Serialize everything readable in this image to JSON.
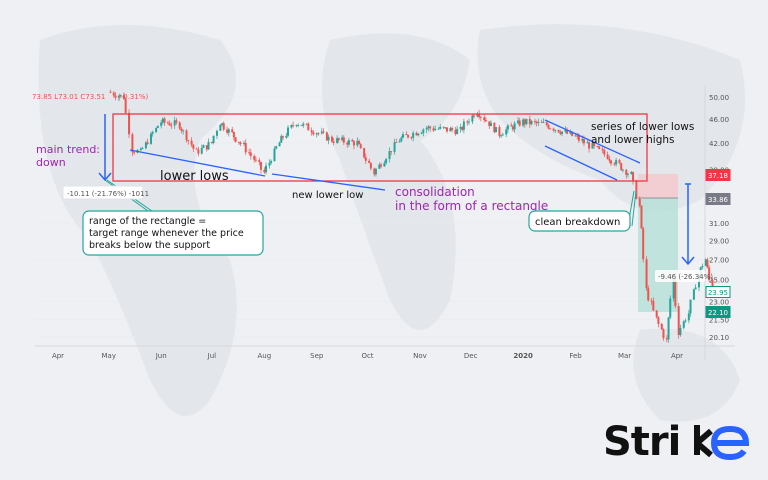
{
  "header": {
    "ohlc_text": "73.85  L73.01  C73.51",
    "change_text": "(-0.31%)"
  },
  "chart_data": {
    "type": "candlestick",
    "y_scale": "log",
    "ylim": [
      19.5,
      51
    ],
    "y_ticks": [
      "50.00",
      "46.00",
      "42.00",
      "38.00",
      "31.00",
      "29.00",
      "27.00",
      "25.00",
      "23.00",
      "21.50",
      "20.10"
    ],
    "y_tick_values": [
      50,
      46,
      42,
      38,
      31,
      29,
      27,
      25,
      23,
      21.5,
      20.1
    ],
    "x_ticks": [
      "Apr",
      "May",
      "Jun",
      "Jul",
      "Aug",
      "Sep",
      "Oct",
      "Nov",
      "Dec",
      "2020",
      "Feb",
      "Mar",
      "Apr"
    ],
    "price_path": [
      {
        "date": "2019-05-01",
        "price": 51
      },
      {
        "date": "2019-05-10",
        "price": 50
      },
      {
        "date": "2019-05-15",
        "price": 41
      },
      {
        "date": "2019-05-20",
        "price": 40.5
      },
      {
        "date": "2019-06-01",
        "price": 45.5
      },
      {
        "date": "2019-06-12",
        "price": 45
      },
      {
        "date": "2019-06-22",
        "price": 40.5
      },
      {
        "date": "2019-07-01",
        "price": 42
      },
      {
        "date": "2019-07-06",
        "price": 45.5
      },
      {
        "date": "2019-07-20",
        "price": 41.5
      },
      {
        "date": "2019-08-01",
        "price": 37.5
      },
      {
        "date": "2019-08-10",
        "price": 42
      },
      {
        "date": "2019-08-20",
        "price": 45.5
      },
      {
        "date": "2019-09-10",
        "price": 42.5
      },
      {
        "date": "2019-09-25",
        "price": 42
      },
      {
        "date": "2019-10-05",
        "price": 37.5
      },
      {
        "date": "2019-10-20",
        "price": 42.5
      },
      {
        "date": "2019-11-05",
        "price": 44.5
      },
      {
        "date": "2019-11-25",
        "price": 44
      },
      {
        "date": "2019-12-05",
        "price": 47.5
      },
      {
        "date": "2019-12-18",
        "price": 43.5
      },
      {
        "date": "2020-01-01",
        "price": 45.5
      },
      {
        "date": "2020-01-15",
        "price": 45
      },
      {
        "date": "2020-02-01",
        "price": 43
      },
      {
        "date": "2020-02-20",
        "price": 40
      },
      {
        "date": "2020-03-05",
        "price": 37.2
      },
      {
        "date": "2020-03-10",
        "price": 33
      },
      {
        "date": "2020-03-14",
        "price": 24
      },
      {
        "date": "2020-03-20",
        "price": 21.5
      },
      {
        "date": "2020-03-26",
        "price": 19.8
      },
      {
        "date": "2020-03-30",
        "price": 25
      },
      {
        "date": "2020-04-02",
        "price": 20.5
      },
      {
        "date": "2020-04-08",
        "price": 22
      },
      {
        "date": "2020-04-14",
        "price": 25.5
      },
      {
        "date": "2020-04-18",
        "price": 27
      },
      {
        "date": "2020-04-22",
        "price": 23.9
      }
    ],
    "price_labels": [
      {
        "text": "37.18",
        "color": "#f23645",
        "style": "filled"
      },
      {
        "text": "33.86",
        "color": "#787b86",
        "style": "filled"
      },
      {
        "text": "23.95",
        "color": "#089981",
        "style": "outline"
      },
      {
        "text": "22.10",
        "color": "#089981",
        "style": "filled"
      }
    ],
    "measure_labels": [
      "-10.11 (-21.76%) -1011",
      "-9.46 (-26.34%)"
    ],
    "colors": {
      "up": "#26a69a",
      "down": "#ef5350",
      "rect": "#f23645",
      "trendline": "#2962ff",
      "annotation_purple": "#9c27b0",
      "callout": "#26a69a"
    }
  },
  "annotations": {
    "main_trend": [
      "main trend:",
      "down"
    ],
    "lower_lows": "lower lows",
    "new_lower_low": "new lower low",
    "consolidation": [
      "consolidation",
      "in the form of a rectangle"
    ],
    "series": [
      "series of lower lows",
      "and lower highs"
    ],
    "range_box": [
      "range of the rectangle =",
      "target range whenever the price",
      "breaks below the support"
    ],
    "clean_breakdown": "clean breakdown"
  },
  "logo": {
    "text": "Strike",
    "accent_color": "#2962ff"
  }
}
